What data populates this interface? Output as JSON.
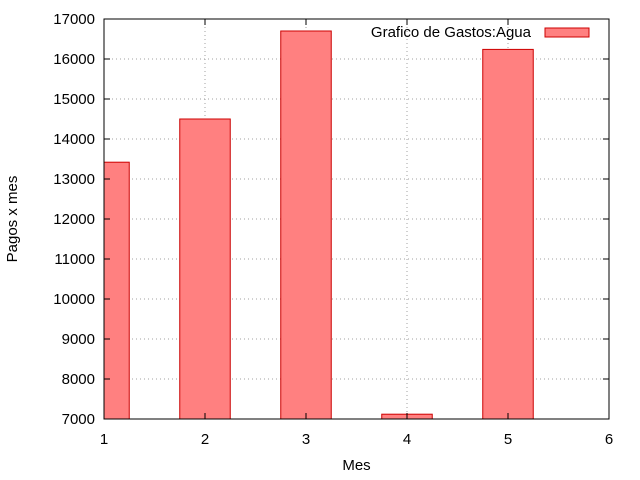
{
  "chart_data": {
    "type": "bar",
    "x": [
      1,
      2,
      3,
      4,
      5
    ],
    "series": [
      {
        "name": "Grafico de Gastos:Agua",
        "values": [
          13420,
          14500,
          16700,
          7120,
          16240
        ],
        "color": "#ff8080",
        "edge_color": "#cc0000"
      }
    ],
    "xlabel": "Mes",
    "ylabel": "Pagos x mes",
    "xlim": [
      1,
      6
    ],
    "ylim": [
      7000,
      17000
    ],
    "xticks": [
      "1",
      "2",
      "3",
      "4",
      "5",
      "6"
    ],
    "yticks": [
      "7000",
      "8000",
      "9000",
      "10000",
      "11000",
      "12000",
      "13000",
      "14000",
      "15000",
      "16000",
      "17000"
    ],
    "bar_width": 0.5,
    "grid": true,
    "legend_position": "top-right"
  }
}
